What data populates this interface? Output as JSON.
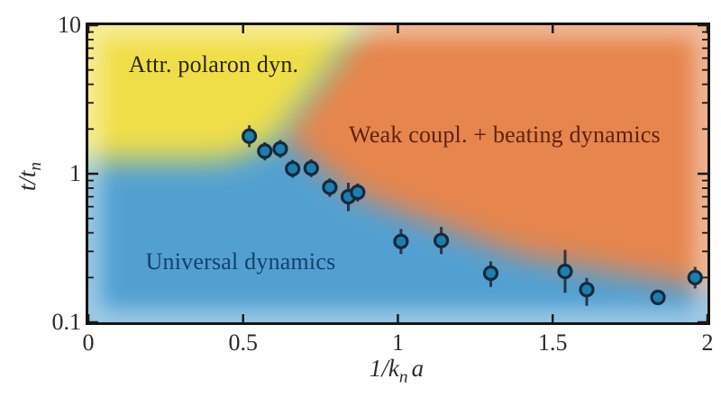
{
  "figure_type": "phase-diagram",
  "colors": {
    "frame": "#141414",
    "tick": "#1a1a1a",
    "tick_label": "#2b2b2b",
    "marker_fill": "#1d7fad",
    "marker_edge": "#16293f",
    "error_bar": "rgba(24,28,42,0.8)",
    "label_attr_polaron": "#2a2414",
    "label_weak_coupling": "#5e2212",
    "label_universal": "#153f6d"
  },
  "axes": {
    "ylabel_main": "t/t",
    "ylabel_sub": "n",
    "xlabel_pre": "1/k",
    "xlabel_sub": "n",
    "xlabel_post": "a",
    "x_tick_labels": [
      "0",
      "0.5",
      "1",
      "1.5",
      "2"
    ],
    "y_tick_labels": [
      "0.1",
      "1",
      "10"
    ]
  },
  "chart_data": {
    "type": "scatter",
    "title": "",
    "xlabel": "1/(k_n a)",
    "ylabel": "t/t_n",
    "x_scale": "linear",
    "y_scale": "log",
    "xlim": [
      0,
      2
    ],
    "ylim": [
      0.1,
      10
    ],
    "grid": false,
    "legend": "none",
    "x_ticks": [
      0,
      0.5,
      1,
      1.5,
      2
    ],
    "y_ticks_major": [
      0.1,
      1,
      10
    ],
    "y_ticks_minor": [
      0.2,
      0.3,
      0.4,
      0.5,
      0.6,
      0.7,
      0.8,
      0.9,
      2,
      3,
      4,
      5,
      6,
      7,
      8,
      9
    ],
    "regions": [
      {
        "name": "Attr. polaron dyn.",
        "color": "#f0de4a",
        "location": "top-left"
      },
      {
        "name": "Weak coupl. + beating dynamics",
        "color": "#e6854e",
        "location": "top-right"
      },
      {
        "name": "Universal dynamics",
        "color": "#52a0d2",
        "location": "bottom-left"
      }
    ],
    "points": [
      {
        "x": 0.52,
        "y": 1.79,
        "y_lo": 1.51,
        "y_hi": 2.12
      },
      {
        "x": 0.57,
        "y": 1.42,
        "y_lo": 1.23,
        "y_hi": 1.63
      },
      {
        "x": 0.62,
        "y": 1.47,
        "y_lo": 1.28,
        "y_hi": 1.69
      },
      {
        "x": 0.66,
        "y": 1.08,
        "y_lo": 0.94,
        "y_hi": 1.24
      },
      {
        "x": 0.72,
        "y": 1.09,
        "y_lo": 0.95,
        "y_hi": 1.25
      },
      {
        "x": 0.78,
        "y": 0.81,
        "y_lo": 0.7,
        "y_hi": 0.93
      },
      {
        "x": 0.84,
        "y": 0.7,
        "y_lo": 0.56,
        "y_hi": 0.87
      },
      {
        "x": 0.87,
        "y": 0.75,
        "y_lo": 0.65,
        "y_hi": 0.86
      },
      {
        "x": 1.01,
        "y": 0.35,
        "y_lo": 0.288,
        "y_hi": 0.425
      },
      {
        "x": 1.14,
        "y": 0.355,
        "y_lo": 0.288,
        "y_hi": 0.438
      },
      {
        "x": 1.3,
        "y": 0.214,
        "y_lo": 0.173,
        "y_hi": 0.257
      },
      {
        "x": 1.54,
        "y": 0.22,
        "y_lo": 0.158,
        "y_hi": 0.307
      },
      {
        "x": 1.61,
        "y": 0.166,
        "y_lo": 0.129,
        "y_hi": 0.199
      },
      {
        "x": 1.84,
        "y": 0.147,
        "y_lo": 0.142,
        "y_hi": 0.152
      },
      {
        "x": 1.96,
        "y": 0.2,
        "y_lo": 0.169,
        "y_hi": 0.236
      }
    ]
  }
}
